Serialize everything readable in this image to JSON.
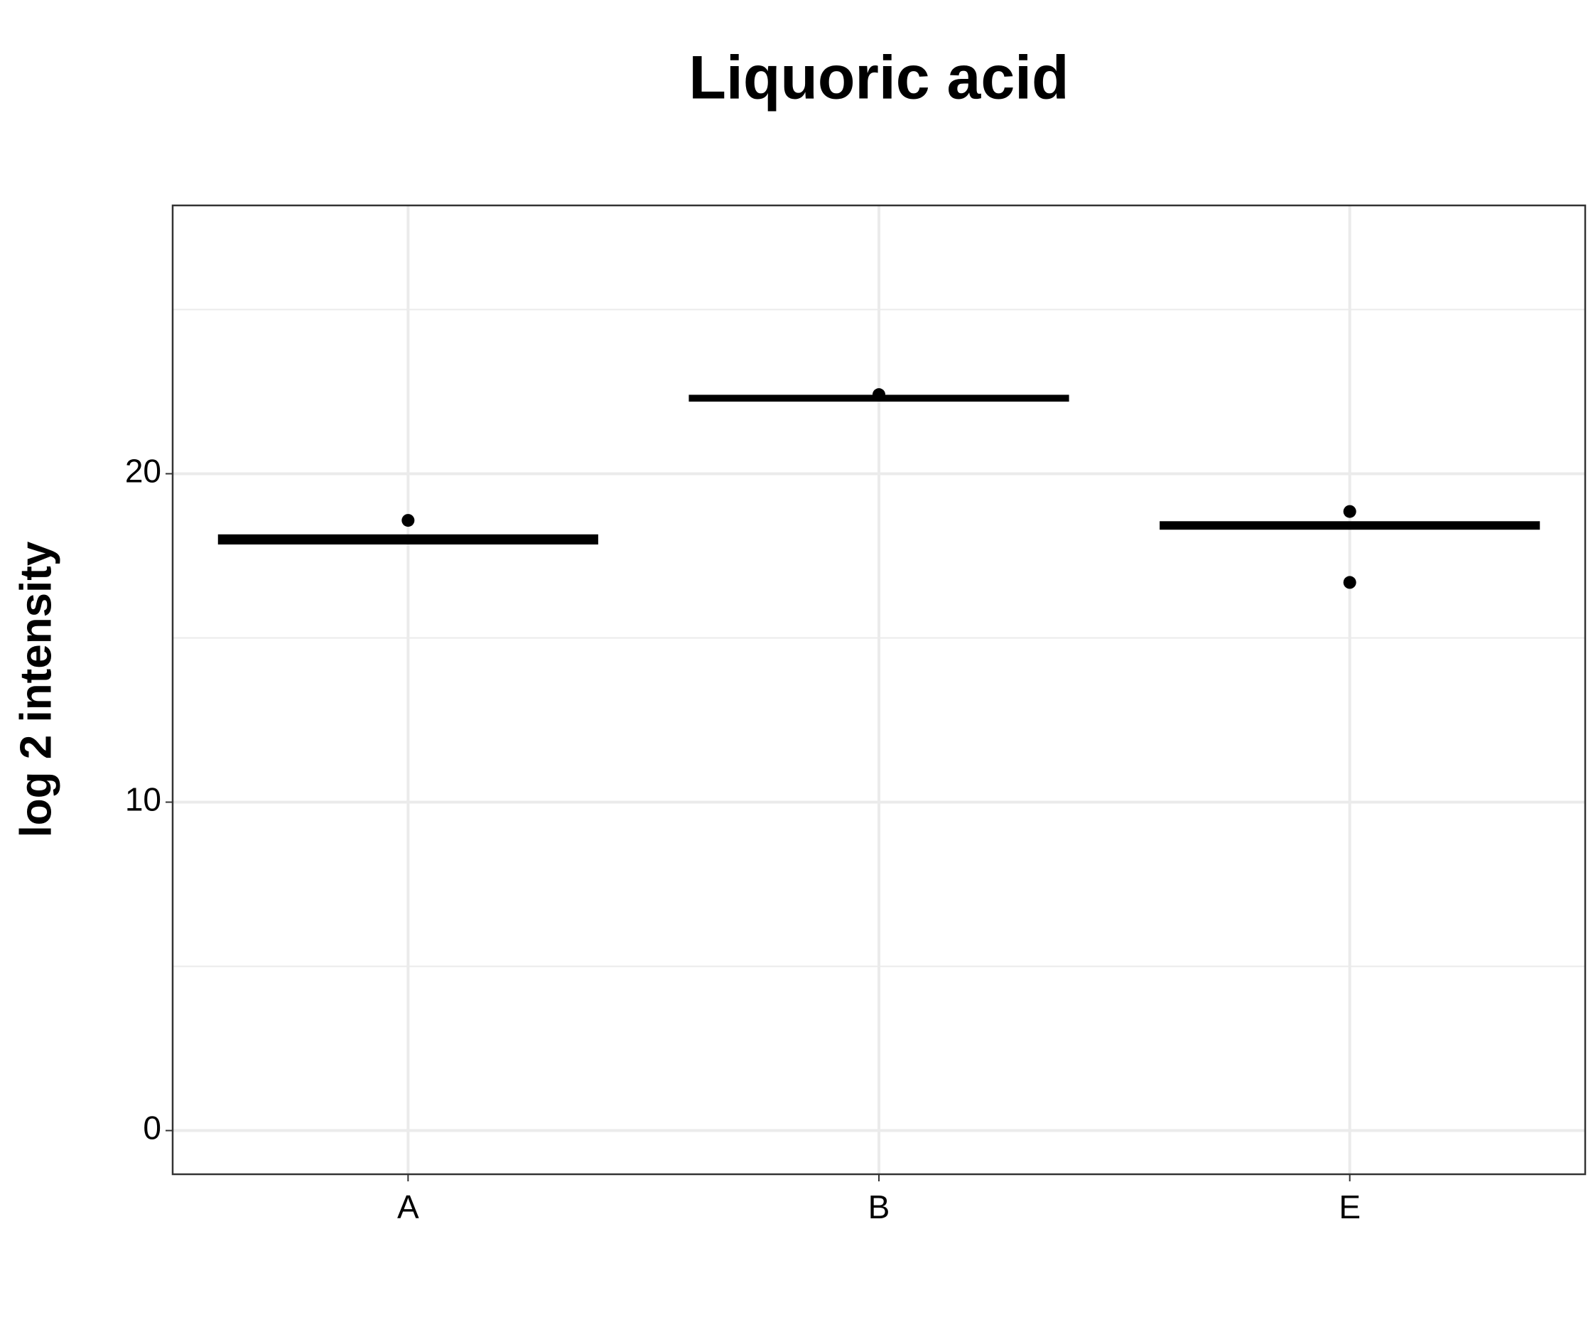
{
  "chart_data": {
    "type": "box",
    "title": "Liquoric acid",
    "ylabel": "log 2 intensity",
    "categories": [
      "A",
      "B",
      "E"
    ],
    "boxes": [
      {
        "q1": 17.9,
        "median": 18.0,
        "q3": 18.1
      },
      {
        "q1": 22.25,
        "median": 22.3,
        "q3": 22.35
      },
      {
        "q1": 18.35,
        "median": 18.42,
        "q3": 18.5
      }
    ],
    "points": [
      [
        18.58
      ],
      [
        22.41
      ],
      [
        18.85,
        16.69
      ]
    ],
    "color": "#000000",
    "ylim": [
      -1.33,
      28.17
    ],
    "yticks": [
      0,
      10,
      20
    ],
    "minor_yticks": [
      5,
      15,
      25
    ],
    "grid": true
  }
}
